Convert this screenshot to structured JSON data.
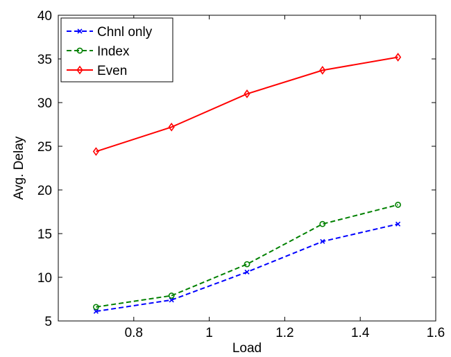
{
  "chart_data": {
    "type": "line",
    "xlabel": "Load",
    "ylabel": "Avg. Delay",
    "xlim": [
      0.6,
      1.6
    ],
    "ylim": [
      5,
      40
    ],
    "xticks": [
      0.8,
      1,
      1.2,
      1.4,
      1.6
    ],
    "xtick_labels": [
      "0.8",
      "1",
      "1.2",
      "1.4",
      "1.6"
    ],
    "yticks": [
      5,
      10,
      15,
      20,
      25,
      30,
      35,
      40
    ],
    "ytick_labels": [
      "5",
      "10",
      "15",
      "20",
      "25",
      "30",
      "35",
      "40"
    ],
    "grid": false,
    "legend_position": "top-left",
    "x": [
      0.7,
      0.9,
      1.1,
      1.3,
      1.5
    ],
    "series": [
      {
        "name": "Chnl only",
        "values": [
          6.1,
          7.4,
          10.6,
          14.1,
          16.1
        ],
        "color": "#0000ff",
        "line_style": "dashed",
        "marker": "x"
      },
      {
        "name": "Index",
        "values": [
          6.6,
          7.9,
          11.5,
          16.1,
          18.3
        ],
        "color": "#008000",
        "line_style": "dashed",
        "marker": "circle"
      },
      {
        "name": "Even",
        "values": [
          24.4,
          27.2,
          31.0,
          33.7,
          35.2
        ],
        "color": "#ff0000",
        "line_style": "solid",
        "marker": "diamond"
      }
    ]
  }
}
